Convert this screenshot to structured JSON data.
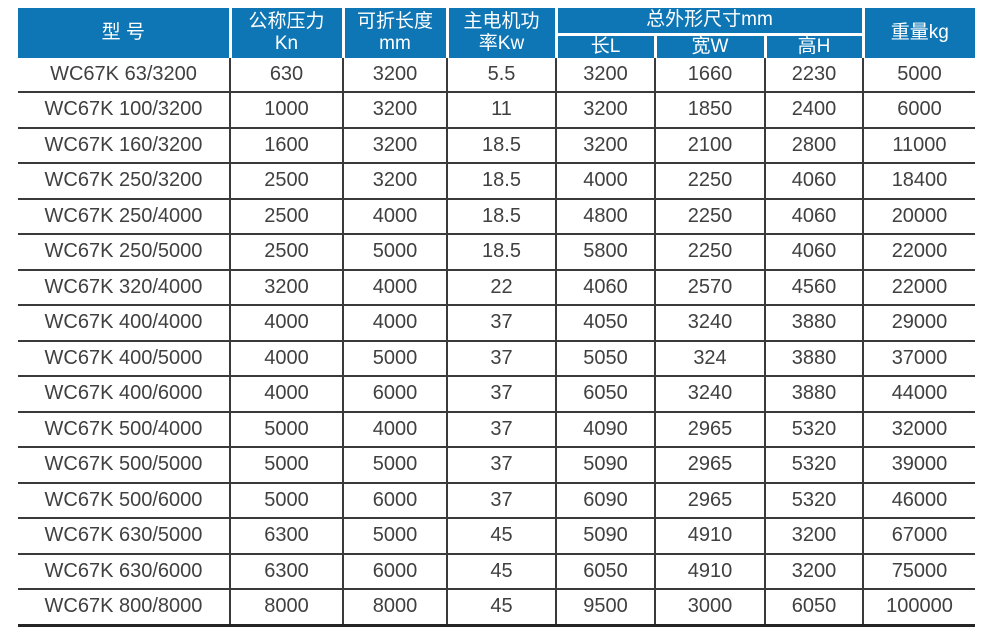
{
  "colors": {
    "header_bg": "#0e76b5",
    "header_text": "#ffffff",
    "body_text": "#404040",
    "grid_line": "#3a3a3a",
    "page_bg": "#ffffff"
  },
  "table": {
    "headers": {
      "model": "型 号",
      "pressure_line1": "公称压力",
      "pressure_line2": "Kn",
      "fold_length_line1": "可折长度",
      "fold_length_line2": "mm",
      "motor_line1": "主电机功",
      "motor_line2": "率Kw",
      "dimensions_group": "总外形尺寸mm",
      "dim_length": "长L",
      "dim_width": "宽W",
      "dim_height": "高H",
      "weight": "重量kg"
    },
    "column_keys": [
      "model",
      "pressure",
      "fold_length",
      "motor_power",
      "dim_length",
      "dim_width",
      "dim_height",
      "weight"
    ],
    "rows": [
      [
        "WC67K 63/3200",
        "630",
        "3200",
        "5.5",
        "3200",
        "1660",
        "2230",
        "5000"
      ],
      [
        "WC67K 100/3200",
        "1000",
        "3200",
        "11",
        "3200",
        "1850",
        "2400",
        "6000"
      ],
      [
        "WC67K 160/3200",
        "1600",
        "3200",
        "18.5",
        "3200",
        "2100",
        "2800",
        "11000"
      ],
      [
        "WC67K 250/3200",
        "2500",
        "3200",
        "18.5",
        "4000",
        "2250",
        "4060",
        "18400"
      ],
      [
        "WC67K 250/4000",
        "2500",
        "4000",
        "18.5",
        "4800",
        "2250",
        "4060",
        "20000"
      ],
      [
        "WC67K 250/5000",
        "2500",
        "5000",
        "18.5",
        "5800",
        "2250",
        "4060",
        "22000"
      ],
      [
        "WC67K 320/4000",
        "3200",
        "4000",
        "22",
        "4060",
        "2570",
        "4560",
        "22000"
      ],
      [
        "WC67K 400/4000",
        "4000",
        "4000",
        "37",
        "4050",
        "3240",
        "3880",
        "29000"
      ],
      [
        "WC67K 400/5000",
        "4000",
        "5000",
        "37",
        "5050",
        "324",
        "3880",
        "37000"
      ],
      [
        "WC67K 400/6000",
        "4000",
        "6000",
        "37",
        "6050",
        "3240",
        "3880",
        "44000"
      ],
      [
        "WC67K 500/4000",
        "5000",
        "4000",
        "37",
        "4090",
        "2965",
        "5320",
        "32000"
      ],
      [
        "WC67K 500/5000",
        "5000",
        "5000",
        "37",
        "5090",
        "2965",
        "5320",
        "39000"
      ],
      [
        "WC67K 500/6000",
        "5000",
        "6000",
        "37",
        "6090",
        "2965",
        "5320",
        "46000"
      ],
      [
        "WC67K 630/5000",
        "6300",
        "5000",
        "45",
        "5090",
        "4910",
        "3200",
        "67000"
      ],
      [
        "WC67K 630/6000",
        "6300",
        "6000",
        "45",
        "6050",
        "4910",
        "3200",
        "75000"
      ],
      [
        "WC67K 800/8000",
        "8000",
        "8000",
        "45",
        "9500",
        "3000",
        "6050",
        "100000"
      ]
    ]
  }
}
